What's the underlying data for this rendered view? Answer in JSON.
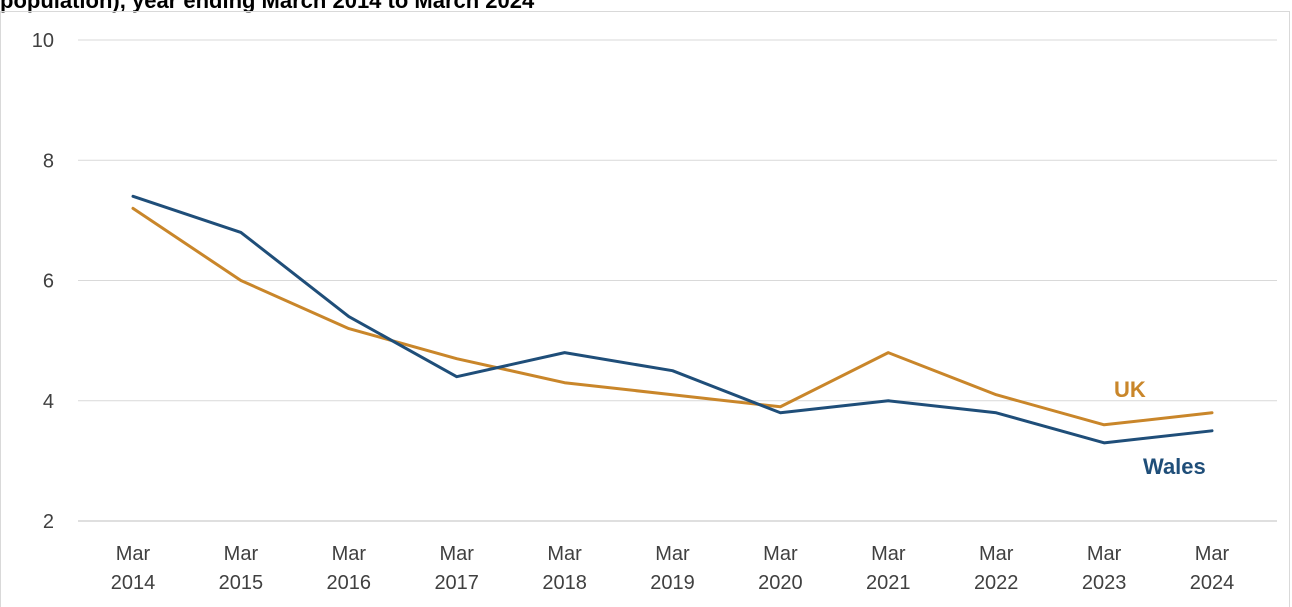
{
  "chart_data": {
    "type": "line",
    "title": "population), year ending March 2014 to March 2024",
    "xlabel": "",
    "ylabel": "",
    "categories": [
      [
        "Mar",
        "2014"
      ],
      [
        "Mar",
        "2015"
      ],
      [
        "Mar",
        "2016"
      ],
      [
        "Mar",
        "2017"
      ],
      [
        "Mar",
        "2018"
      ],
      [
        "Mar",
        "2019"
      ],
      [
        "Mar",
        "2020"
      ],
      [
        "Mar",
        "2021"
      ],
      [
        "Mar",
        "2022"
      ],
      [
        "Mar",
        "2023"
      ],
      [
        "Mar",
        "2024"
      ]
    ],
    "ylim": [
      2,
      10
    ],
    "yticks": [
      "2",
      "4",
      "6",
      "8",
      "10"
    ],
    "grid": true,
    "legend": "inline labels at right end of lines",
    "series": [
      {
        "name": "UK",
        "color": "#c9862a",
        "values": [
          7.2,
          6.0,
          5.2,
          4.7,
          4.3,
          4.1,
          3.9,
          4.8,
          4.1,
          3.6,
          3.8
        ]
      },
      {
        "name": "Wales",
        "color": "#1f4e79",
        "values": [
          7.4,
          6.8,
          5.4,
          4.4,
          4.8,
          4.5,
          3.8,
          4.0,
          3.8,
          3.3,
          3.5
        ]
      }
    ]
  }
}
